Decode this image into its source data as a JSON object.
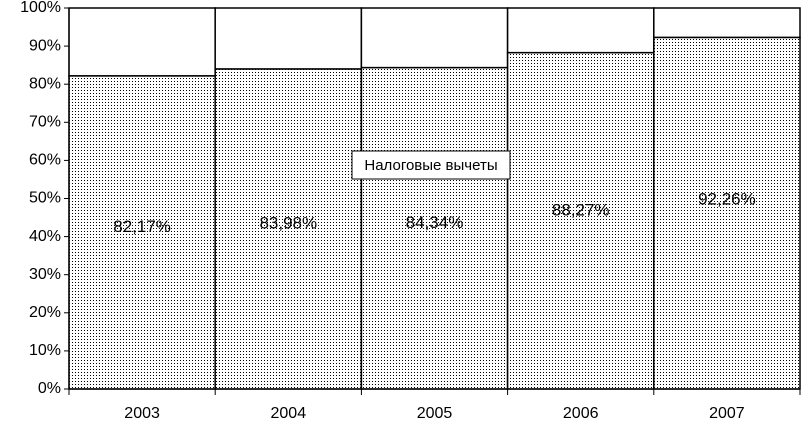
{
  "chart_data": {
    "type": "bar",
    "stacked": true,
    "percent_stacked": true,
    "categories": [
      "2003",
      "2004",
      "2005",
      "2006",
      "2007"
    ],
    "series": [
      {
        "name": "Налоговые вычеты",
        "values": [
          82.17,
          83.98,
          84.34,
          88.27,
          92.26
        ],
        "labels": [
          "82,17%",
          "83,98%",
          "84,34%",
          "88,27%",
          "92,26%"
        ],
        "fill": "dotted",
        "color": "#000000"
      },
      {
        "values": [
          17.83,
          16.02,
          15.66,
          11.73,
          7.74
        ],
        "fill": "white",
        "color": "#ffffff"
      }
    ],
    "y_ticks": [
      "0%",
      "10%",
      "20%",
      "30%",
      "40%",
      "50%",
      "60%",
      "70%",
      "80%",
      "90%",
      "100%"
    ],
    "ylim": [
      0,
      100
    ],
    "annotation": "Налоговые вычеты",
    "grid": false,
    "legend": "none",
    "title": "",
    "xlabel": "",
    "ylabel": ""
  }
}
